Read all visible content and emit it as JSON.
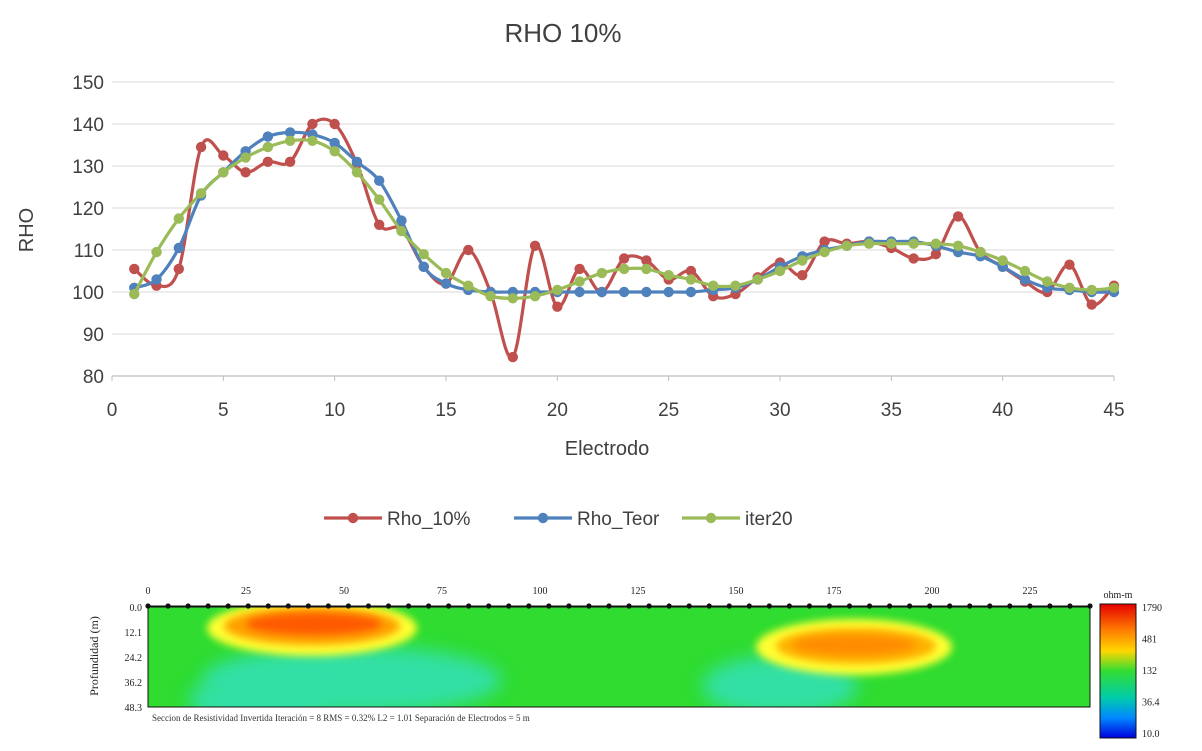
{
  "chart_data": {
    "type": "line",
    "title": "RHO 10%",
    "xlabel": "Electrodo",
    "ylabel": "RHO",
    "xlim": [
      0,
      45
    ],
    "ylim": [
      80,
      150
    ],
    "xticks": [
      0,
      5,
      10,
      15,
      20,
      25,
      30,
      35,
      40,
      45
    ],
    "yticks": [
      80,
      90,
      100,
      110,
      120,
      130,
      140,
      150
    ],
    "grid": "horizontal",
    "legend_position": "bottom",
    "x": [
      1,
      2,
      3,
      4,
      5,
      6,
      7,
      8,
      9,
      10,
      11,
      12,
      13,
      14,
      15,
      16,
      17,
      18,
      19,
      20,
      21,
      22,
      23,
      24,
      25,
      26,
      27,
      28,
      29,
      30,
      31,
      32,
      33,
      34,
      35,
      36,
      37,
      38,
      39,
      40,
      41,
      42,
      43,
      44,
      45
    ],
    "series": [
      {
        "name": "Rho_10%",
        "color": "#c0504d",
        "values": [
          105.5,
          101.5,
          105.5,
          134.5,
          132.5,
          128.5,
          131,
          131,
          140,
          140,
          130.5,
          116,
          115,
          106,
          102,
          110,
          100,
          84.5,
          111,
          96.5,
          105.5,
          100,
          108,
          107.5,
          103,
          105,
          99,
          99.5,
          103.5,
          107,
          104,
          112,
          111.5,
          112,
          110.5,
          108,
          109,
          118,
          109.5,
          106,
          102.5,
          100,
          106.5,
          97,
          101.5
        ]
      },
      {
        "name": "Rho_Teor",
        "color": "#4f81bd",
        "values": [
          101,
          103,
          110.5,
          123,
          128.5,
          133.5,
          137,
          138,
          137.5,
          135.5,
          131,
          126.5,
          117,
          106,
          102,
          100.5,
          100,
          100,
          100,
          100,
          100,
          100,
          100,
          100,
          100,
          100,
          100.5,
          101,
          103,
          106,
          108.5,
          110,
          111,
          112,
          112,
          112,
          111,
          109.5,
          108.5,
          106,
          103,
          101,
          100.5,
          100,
          100
        ]
      },
      {
        "name": "iter20",
        "color": "#9bbb59",
        "values": [
          99.5,
          109.5,
          117.5,
          123.5,
          128.5,
          132,
          134.5,
          136,
          136,
          133.5,
          128.5,
          122,
          114.5,
          109,
          104.5,
          101.5,
          99,
          98.5,
          99,
          100.5,
          102.5,
          104.5,
          105.5,
          105.5,
          104,
          103,
          101.5,
          101.5,
          103,
          105,
          107.5,
          109.5,
          111,
          111.5,
          111.5,
          111.5,
          111.5,
          111,
          109.5,
          107.5,
          105,
          102.5,
          101,
          100.5,
          101
        ]
      }
    ]
  },
  "section": {
    "x_ticks": [
      "0",
      "25",
      "50",
      "75",
      "100",
      "125",
      "150",
      "175",
      "200",
      "225"
    ],
    "depth_ticks": [
      "0.0",
      "12.1",
      "24.2",
      "36.2",
      "48.3"
    ],
    "ylabel": "Profundidad (m)",
    "legend_title": "ohm-m",
    "legend_ticks": [
      "1790",
      "481",
      "132",
      "36.4",
      "10.0"
    ],
    "footer": "Seccion de Resistividad Invertida     Iteración = 8     RMS = 0.32%     L2 = 1.01     Separación de Electrodos = 5 m"
  }
}
